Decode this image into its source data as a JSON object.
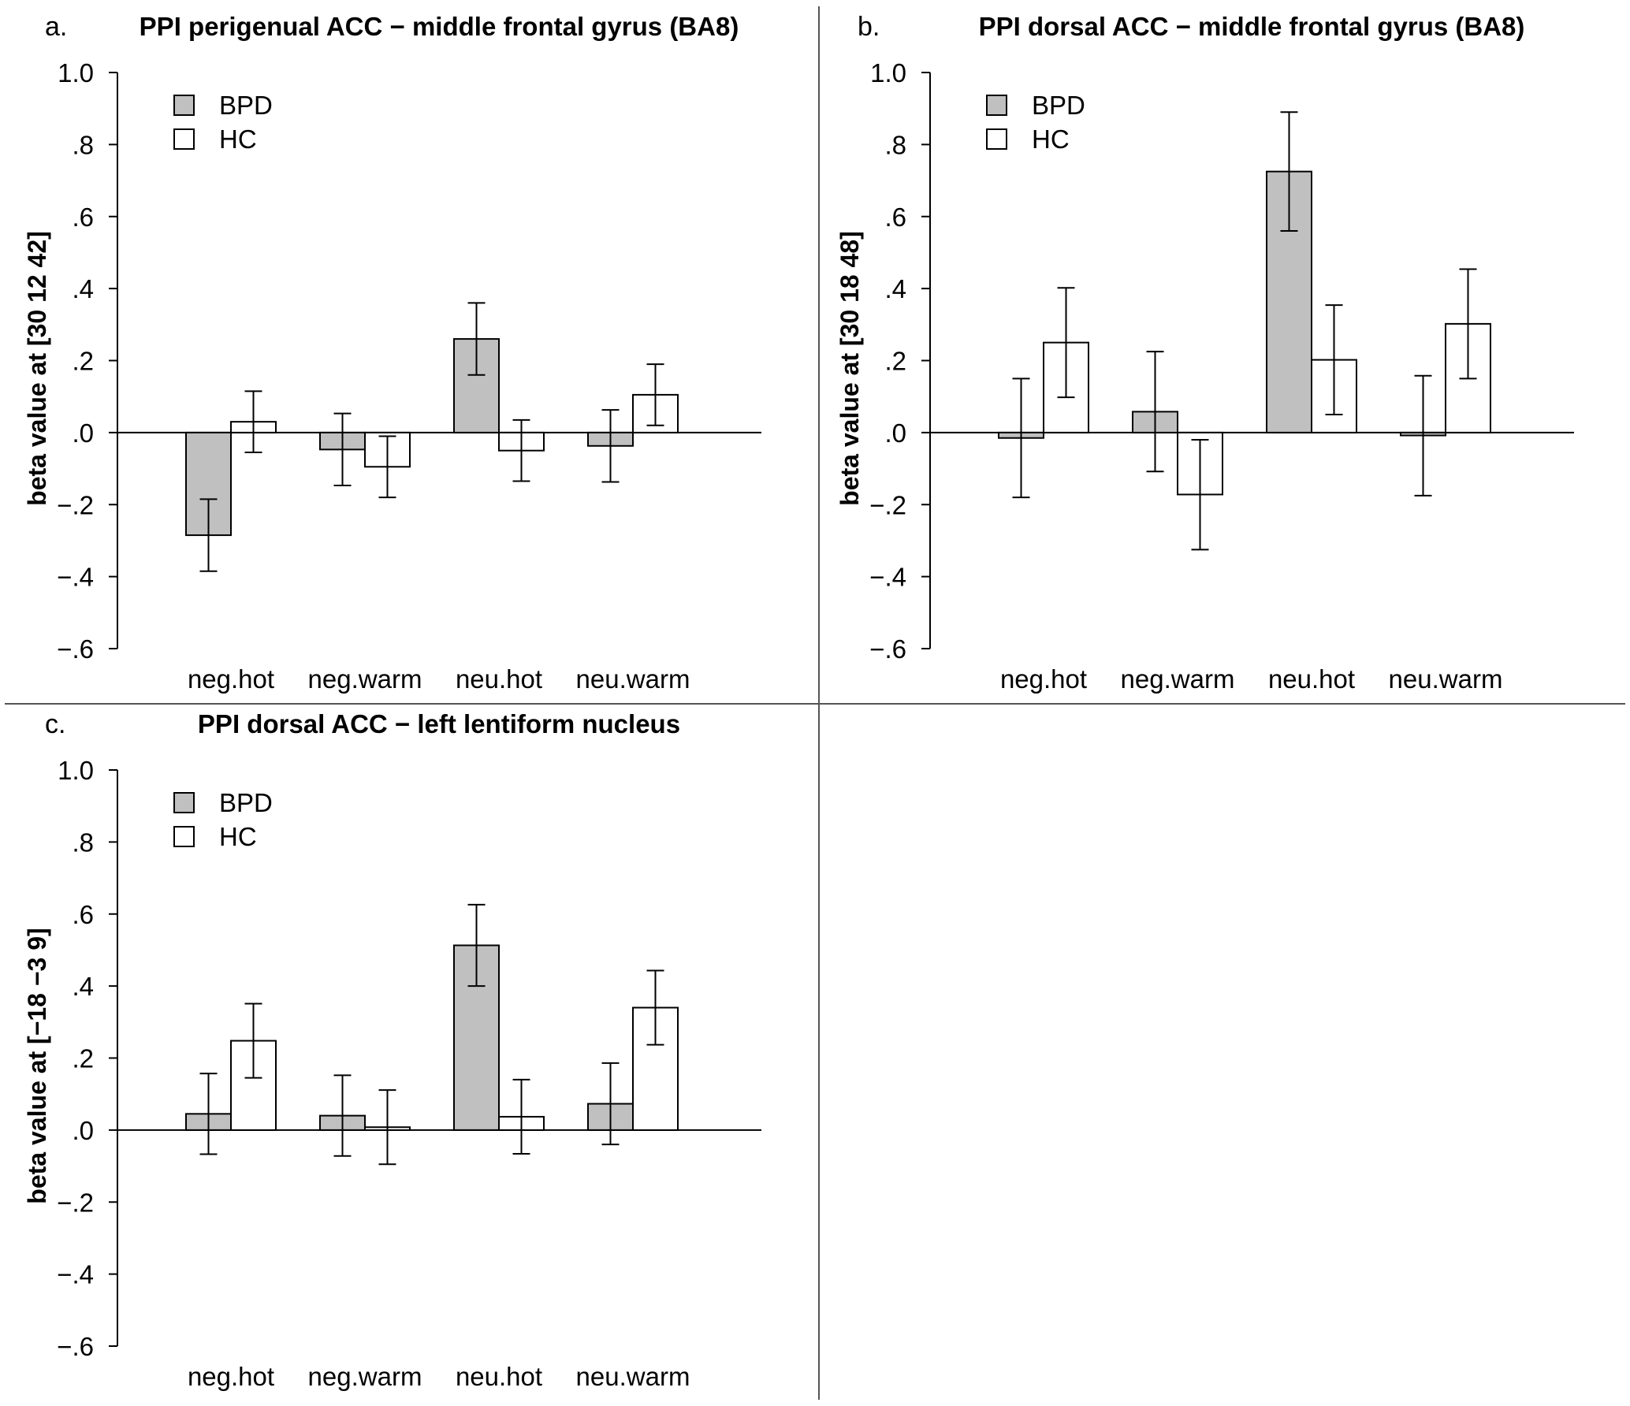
{
  "colors": {
    "bpd_fill": "#c0c0c0",
    "hc_fill": "#ffffff",
    "stroke": "#000000",
    "divider": "#555555"
  },
  "legend": {
    "items": [
      "BPD",
      "HC"
    ]
  },
  "chart_data": [
    {
      "type": "bar",
      "letter": "a.",
      "title": "PPI perigenual ACC − middle frontal gyrus (BA8)",
      "ylabel": "beta value at [30 12 42]",
      "categories": [
        "neg.hot",
        "neg.warm",
        "neu.hot",
        "neu.warm"
      ],
      "ylim": [
        -0.6,
        1.0
      ],
      "yticks": [
        1.0,
        0.8,
        0.6,
        0.4,
        0.2,
        0.0,
        -0.2,
        -0.4,
        -0.6
      ],
      "ytick_labels": [
        "1.0",
        ".8",
        ".6",
        ".4",
        ".2",
        ".0",
        "−.2",
        "−.4",
        "−.6"
      ],
      "legend": [
        "BPD",
        "HC"
      ],
      "series": [
        {
          "name": "BPD",
          "values": [
            -0.285,
            -0.047,
            0.26,
            -0.037
          ],
          "err_low": [
            -0.385,
            -0.147,
            0.16,
            -0.137
          ],
          "err_high": [
            -0.185,
            0.053,
            0.36,
            0.063
          ]
        },
        {
          "name": "HC",
          "values": [
            0.03,
            -0.095,
            -0.05,
            0.105
          ],
          "err_low": [
            -0.055,
            -0.18,
            -0.135,
            0.02
          ],
          "err_high": [
            0.115,
            -0.01,
            0.035,
            0.19
          ]
        }
      ]
    },
    {
      "type": "bar",
      "letter": "b.",
      "title": "PPI dorsal ACC − middle frontal gyrus (BA8)",
      "ylabel": "beta value at [30 18 48]",
      "categories": [
        "neg.hot",
        "neg.warm",
        "neu.hot",
        "neu.warm"
      ],
      "ylim": [
        -0.6,
        1.0
      ],
      "yticks": [
        1.0,
        0.8,
        0.6,
        0.4,
        0.2,
        0.0,
        -0.2,
        -0.4,
        -0.6
      ],
      "ytick_labels": [
        "1.0",
        ".8",
        ".6",
        ".4",
        ".2",
        ".0",
        "−.2",
        "−.4",
        "−.6"
      ],
      "legend": [
        "BPD",
        "HC"
      ],
      "series": [
        {
          "name": "BPD",
          "values": [
            -0.015,
            0.058,
            0.725,
            -0.008
          ],
          "err_low": [
            -0.18,
            -0.108,
            0.56,
            -0.175
          ],
          "err_high": [
            0.15,
            0.225,
            0.89,
            0.158
          ]
        },
        {
          "name": "HC",
          "values": [
            0.25,
            -0.172,
            0.202,
            0.302
          ],
          "err_low": [
            0.098,
            -0.325,
            0.05,
            0.15
          ],
          "err_high": [
            0.402,
            -0.02,
            0.354,
            0.454
          ]
        }
      ]
    },
    {
      "type": "bar",
      "letter": "c.",
      "title": "PPI dorsal ACC − left lentiform nucleus",
      "ylabel": "beta value at [−18 −3 9]",
      "categories": [
        "neg.hot",
        "neg.warm",
        "neu.hot",
        "neu.warm"
      ],
      "ylim": [
        -0.6,
        1.0
      ],
      "yticks": [
        1.0,
        0.8,
        0.6,
        0.4,
        0.2,
        0.0,
        -0.2,
        -0.4,
        -0.6
      ],
      "ytick_labels": [
        "1.0",
        ".8",
        ".6",
        ".4",
        ".2",
        ".0",
        "−.2",
        "−.4",
        "−.6"
      ],
      "legend": [
        "BPD",
        "HC"
      ],
      "series": [
        {
          "name": "BPD",
          "values": [
            0.045,
            0.04,
            0.513,
            0.073
          ],
          "err_low": [
            -0.067,
            -0.072,
            0.4,
            -0.04
          ],
          "err_high": [
            0.157,
            0.152,
            0.626,
            0.186
          ]
        },
        {
          "name": "HC",
          "values": [
            0.248,
            0.008,
            0.037,
            0.34
          ],
          "err_low": [
            0.145,
            -0.095,
            -0.066,
            0.237
          ],
          "err_high": [
            0.351,
            0.111,
            0.14,
            0.443
          ]
        }
      ]
    }
  ]
}
